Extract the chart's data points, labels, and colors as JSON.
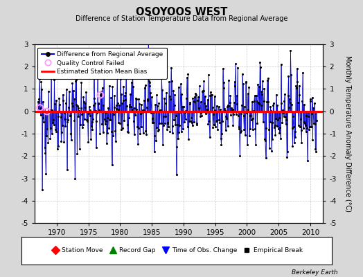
{
  "title": "OSOYOOS WEST",
  "subtitle": "Difference of Station Temperature Data from Regional Average",
  "ylabel": "Monthly Temperature Anomaly Difference (°C)",
  "xlabel_ticks": [
    1970,
    1975,
    1980,
    1985,
    1990,
    1995,
    2000,
    2005,
    2010
  ],
  "ylim": [
    -5,
    3
  ],
  "yticks": [
    -5,
    -4,
    -3,
    -2,
    -1,
    0,
    1,
    2,
    3
  ],
  "xmin": 1966.5,
  "xmax": 2012.0,
  "bias_line": 0.0,
  "bias_color": "#ff0000",
  "series_color": "#0000cc",
  "marker_color": "#000000",
  "qc_color": "#ff99ff",
  "background_color": "#d8d8d8",
  "plot_bg_color": "#ffffff",
  "grid_color": "#bbbbbb",
  "legend1_entries": [
    "Difference from Regional Average",
    "Quality Control Failed",
    "Estimated Station Mean Bias"
  ],
  "legend2_entries": [
    "Station Move",
    "Record Gap",
    "Time of Obs. Change",
    "Empirical Break"
  ],
  "watermark": "Berkeley Earth",
  "seed": 42,
  "n_years": 44,
  "start_year": 1967,
  "months_per_year": 12
}
